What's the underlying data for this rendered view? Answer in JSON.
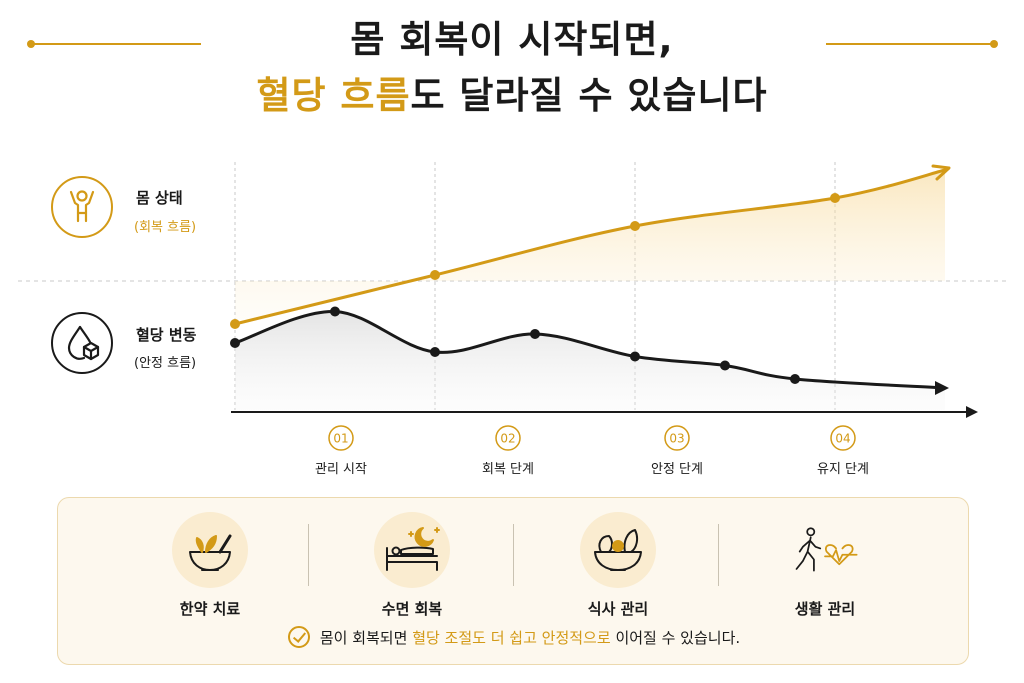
{
  "header": {
    "line1": "몸 회복이 시작되면,",
    "line2_accent": "혈당 흐름",
    "line2_rest": "도 달라질 수 있습니다"
  },
  "legend": {
    "body_label": "몸 상태",
    "body_sub": "(회복 흐름)",
    "sugar_label": "혈당 변동",
    "sugar_sub": "(안정 흐름)"
  },
  "chart_data": {
    "type": "line",
    "categories": [
      "관리 시작",
      "회복 단계",
      "안정 단계",
      "유지 단계"
    ],
    "stage_numbers": [
      "01",
      "02",
      "03",
      "04"
    ],
    "series": [
      {
        "name": "몸 상태",
        "color": "#d39a17",
        "points": [
          {
            "x": 0,
            "y": 0.8
          },
          {
            "x": 1,
            "y": 1.5
          },
          {
            "x": 2,
            "y": 2.2
          },
          {
            "x": 3,
            "y": 2.6
          },
          {
            "x": 3.55,
            "y": 3.0
          }
        ]
      },
      {
        "name": "혈당 변동",
        "color": "#1a1a1a",
        "points": [
          {
            "x": 0,
            "y": -0.2
          },
          {
            "x": 0.5,
            "y": 0.5
          },
          {
            "x": 1,
            "y": -0.4
          },
          {
            "x": 1.5,
            "y": 0.0
          },
          {
            "x": 2,
            "y": -0.5
          },
          {
            "x": 2.45,
            "y": -0.7
          },
          {
            "x": 2.8,
            "y": -1.0
          },
          {
            "x": 3.55,
            "y": -1.2
          }
        ],
        "marker_index": [
          0,
          1,
          2,
          3,
          4,
          5,
          6
        ]
      }
    ],
    "xlim": [
      0,
      3.55
    ],
    "grid": false,
    "colors": {
      "accent": "#d39a17",
      "dark": "#1a1a1a"
    }
  },
  "methods": [
    {
      "label": "한약 치료",
      "icon": "herbal-bowl-icon"
    },
    {
      "label": "수면 회복",
      "icon": "sleep-bed-icon"
    },
    {
      "label": "식사 관리",
      "icon": "salad-bowl-icon"
    },
    {
      "label": "생활 관리",
      "icon": "walking-heartbeat-icon"
    }
  ],
  "note": {
    "prefix": "몸이 회복되면 ",
    "accent": "혈당 조절도 더 쉽고 안정적으로",
    "suffix": " 이어질 수 있습니다."
  }
}
